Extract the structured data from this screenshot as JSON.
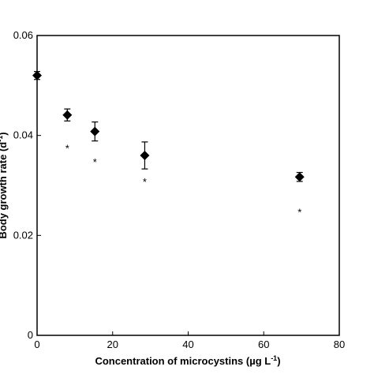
{
  "chart_data": {
    "type": "scatter",
    "title": "",
    "xlabel": "Concentration of microcystins (µg L",
    "xlabel_sup": "-1",
    "xlabel_close": ")",
    "ylabel": "Body growth rate (d",
    "ylabel_sup": "-1",
    "ylabel_close": ")",
    "xlim": [
      0,
      80
    ],
    "ylim": [
      0,
      0.06
    ],
    "xticks": [
      0,
      20,
      40,
      60,
      80
    ],
    "xtick_labels": [
      "0",
      "20",
      "40",
      "60",
      "80"
    ],
    "yticks": [
      0,
      0.02,
      0.04,
      0.06
    ],
    "ytick_labels": [
      "0",
      "0.02",
      "0.04",
      "0.06"
    ],
    "grid": false,
    "marker": "diamond",
    "marker_color": "#000000",
    "points": [
      {
        "x": 0,
        "y": 0.052,
        "err": 0.0008,
        "significant": false
      },
      {
        "x": 8,
        "y": 0.0441,
        "err": 0.0012,
        "significant": true
      },
      {
        "x": 15.3,
        "y": 0.0408,
        "err": 0.0019,
        "significant": true
      },
      {
        "x": 28.5,
        "y": 0.036,
        "err": 0.0027,
        "significant": true
      },
      {
        "x": 69.5,
        "y": 0.0317,
        "err": 0.0009,
        "significant": true
      }
    ],
    "significance_symbol": "*",
    "significance_y": [
      null,
      0.0375,
      0.0347,
      0.0308,
      0.0247
    ]
  }
}
